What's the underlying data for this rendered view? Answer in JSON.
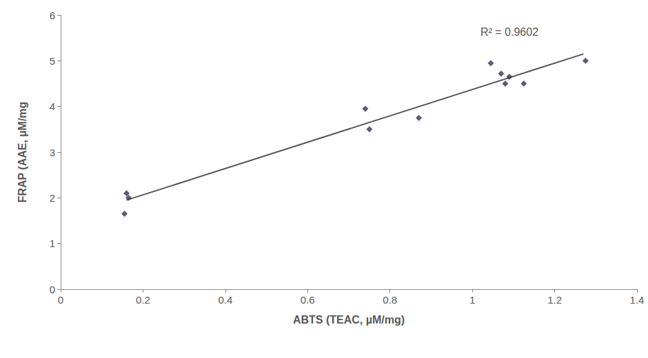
{
  "chart_data": {
    "type": "scatter",
    "x_label": "ABTS (TEAC, µM/mg)",
    "y_label": "FRAP (AAE, µM/mg",
    "x": [
      0.155,
      0.16,
      0.165,
      0.74,
      0.75,
      0.87,
      1.045,
      1.07,
      1.08,
      1.09,
      1.125,
      1.275
    ],
    "values": [
      1.65,
      2.1,
      2.0,
      3.95,
      3.5,
      3.75,
      4.95,
      4.72,
      4.5,
      4.65,
      4.5,
      5.0
    ],
    "color": "#333355",
    "marker": "diamond",
    "trendline": {
      "x": [
        0.16,
        1.27
      ],
      "values": [
        1.95,
        5.15
      ],
      "color": "#555555"
    },
    "annotation": "R² = 0.9602",
    "xlim": [
      0,
      1.4
    ],
    "xticks": [
      0,
      0.2,
      0.4,
      0.6,
      0.8,
      1,
      1.2,
      1.4
    ],
    "ylim": [
      0,
      6
    ],
    "yticks": [
      0,
      1,
      2,
      3,
      4,
      5,
      6
    ],
    "grid": false
  }
}
